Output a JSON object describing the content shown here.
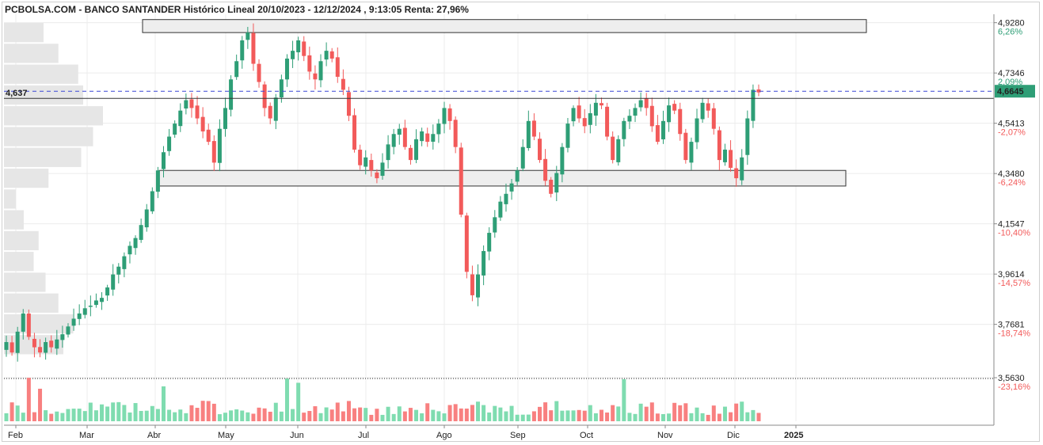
{
  "title": "PCBOLSA.COM - BANCO SANTANDER Histórico Lineal 20/10/2023 - 12/12/2024 , 9:13:05 Renta: 27,96%",
  "colors": {
    "up": "#2e9e76",
    "down": "#f25a5a",
    "volume_up": "#7fdcb0",
    "volume_down": "#f88080",
    "profile": "#e6e6e6",
    "ref_line": "#3a46d6",
    "zone_fill": "#eeeeee",
    "zone_border": "#333333",
    "price_tag": "#2e9e76",
    "pct_up": "#2e9e76",
    "pct_down": "#f25a5a"
  },
  "chart_data": {
    "type": "candlestick",
    "ylim": [
      3.56,
      4.93
    ],
    "y_ticks": [
      {
        "value": 4.928,
        "label": "4,9280",
        "pct": "6,26%",
        "dir": "up"
      },
      {
        "value": 4.7346,
        "label": "4,7346",
        "pct": "2,09%",
        "dir": "up"
      },
      {
        "value": 4.5413,
        "label": "4,5413",
        "pct": "-2,07%",
        "dir": "down"
      },
      {
        "value": 4.348,
        "label": "4,3480",
        "pct": "-6,24%",
        "dir": "down"
      },
      {
        "value": 4.1547,
        "label": "4,1547",
        "pct": "-10,40%",
        "dir": "down"
      },
      {
        "value": 3.9614,
        "label": "3,9614",
        "pct": "-14,57%",
        "dir": "down"
      },
      {
        "value": 3.7681,
        "label": "3,7681",
        "pct": "-18,74%",
        "dir": "down"
      },
      {
        "value": 3.563,
        "label": "3,5630",
        "pct": "-23,16%",
        "dir": "down"
      }
    ],
    "months": [
      "Feb",
      "Mar",
      "Abr",
      "May",
      "Jun",
      "Jul",
      "Ago",
      "Sep",
      "Oct",
      "Nov",
      "Dic",
      "2025"
    ],
    "reference_line": {
      "value": 4.637,
      "label": "4,637"
    },
    "last_price": {
      "value": 4.6645,
      "label": "4,6645"
    },
    "zones": [
      {
        "from": 4.89,
        "to": 4.94
      },
      {
        "from": 4.3,
        "to": 4.36
      }
    ],
    "close_series": [
      3.7,
      3.66,
      3.74,
      3.81,
      3.72,
      3.68,
      3.66,
      3.7,
      3.68,
      3.71,
      3.73,
      3.76,
      3.79,
      3.81,
      3.83,
      3.84,
      3.86,
      3.87,
      3.91,
      3.96,
      3.99,
      4.03,
      4.07,
      4.1,
      4.15,
      4.21,
      4.28,
      4.36,
      4.43,
      4.49,
      4.54,
      4.59,
      4.63,
      4.6,
      4.56,
      4.51,
      4.47,
      4.39,
      4.52,
      4.6,
      4.71,
      4.78,
      4.86,
      4.89,
      4.77,
      4.7,
      4.6,
      4.56,
      4.64,
      4.71,
      4.79,
      4.82,
      4.86,
      4.8,
      4.74,
      4.71,
      4.78,
      4.82,
      4.79,
      4.72,
      4.67,
      4.57,
      4.44,
      4.38,
      4.41,
      4.36,
      4.33,
      4.39,
      4.46,
      4.5,
      4.52,
      4.45,
      4.4,
      4.48,
      4.51,
      4.47,
      4.5,
      4.54,
      4.6,
      4.55,
      4.45,
      4.19,
      3.97,
      3.88,
      3.96,
      4.05,
      4.12,
      4.18,
      4.24,
      4.27,
      4.31,
      4.36,
      4.45,
      4.55,
      4.49,
      4.4,
      4.32,
      4.27,
      4.35,
      4.45,
      4.54,
      4.6,
      4.56,
      4.53,
      4.58,
      4.62,
      4.61,
      4.49,
      4.4,
      4.48,
      4.55,
      4.57,
      4.6,
      4.63,
      4.6,
      4.53,
      4.47,
      4.55,
      4.61,
      4.59,
      4.5,
      4.4,
      4.47,
      4.56,
      4.62,
      4.59,
      4.52,
      4.4,
      4.44,
      4.37,
      4.33,
      4.41,
      4.56,
      4.67,
      4.66
    ],
    "volume_profile": [
      {
        "price_from": 4.85,
        "price_to": 4.93,
        "length": 0.4
      },
      {
        "price_from": 4.77,
        "price_to": 4.85,
        "length": 0.55
      },
      {
        "price_from": 4.69,
        "price_to": 4.77,
        "length": 0.75
      },
      {
        "price_from": 4.61,
        "price_to": 4.69,
        "length": 0.8
      },
      {
        "price_from": 4.53,
        "price_to": 4.61,
        "length": 1.0
      },
      {
        "price_from": 4.45,
        "price_to": 4.53,
        "length": 0.9
      },
      {
        "price_from": 4.37,
        "price_to": 4.45,
        "length": 0.78
      },
      {
        "price_from": 4.29,
        "price_to": 4.37,
        "length": 0.45
      },
      {
        "price_from": 4.21,
        "price_to": 4.29,
        "length": 0.12
      },
      {
        "price_from": 4.13,
        "price_to": 4.21,
        "length": 0.2
      },
      {
        "price_from": 4.05,
        "price_to": 4.13,
        "length": 0.35
      },
      {
        "price_from": 3.97,
        "price_to": 4.05,
        "length": 0.3
      },
      {
        "price_from": 3.89,
        "price_to": 3.97,
        "length": 0.42
      },
      {
        "price_from": 3.81,
        "price_to": 3.89,
        "length": 0.55
      },
      {
        "price_from": 3.73,
        "price_to": 3.81,
        "length": 0.7
      },
      {
        "price_from": 3.65,
        "price_to": 3.73,
        "length": 0.6
      }
    ]
  }
}
